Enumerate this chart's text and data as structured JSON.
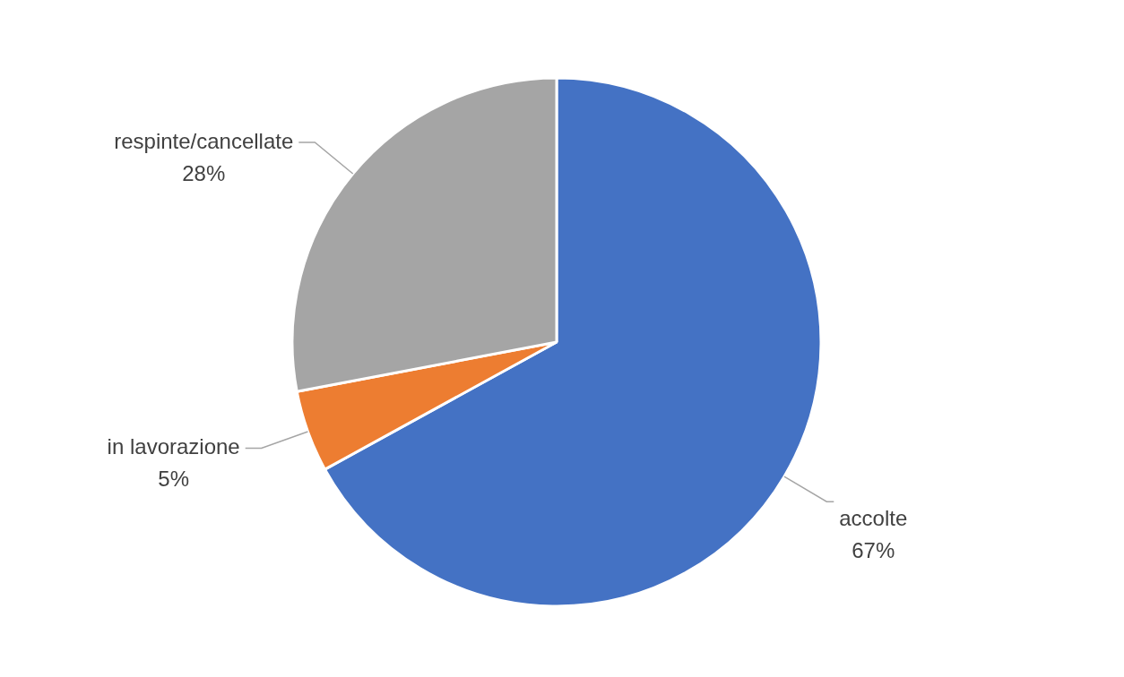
{
  "chart_data": {
    "type": "pie",
    "categories": [
      "accolte",
      "in lavorazione",
      "respinte/cancellate"
    ],
    "values": [
      67,
      5,
      28
    ],
    "colors": [
      "#4472c4",
      "#ed7d31",
      "#a5a5a5"
    ],
    "value_labels": [
      "67%",
      "5%",
      "28%"
    ],
    "legend": false
  }
}
